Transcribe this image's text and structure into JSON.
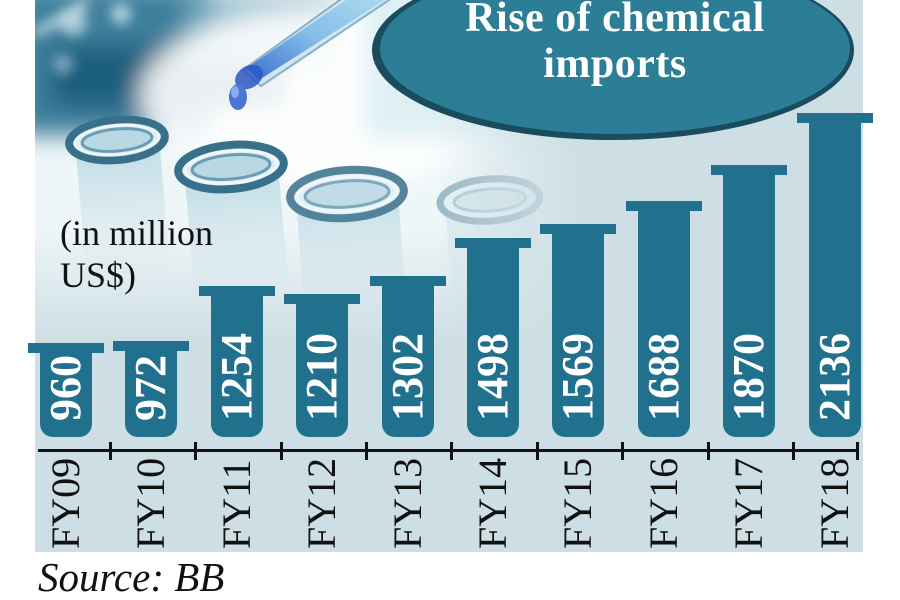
{
  "chart_data": {
    "type": "bar",
    "title": "Rise of chemical imports",
    "title_lines": [
      "Rise of chemical",
      "imports"
    ],
    "ylabel": "(in million US$)",
    "units_lines": [
      "(in million",
      "US$)"
    ],
    "xlabel": "",
    "categories": [
      "FY09",
      "FY10",
      "FY11",
      "FY12",
      "FY13",
      "FY14",
      "FY15",
      "FY16",
      "FY17",
      "FY18"
    ],
    "values": [
      960,
      972,
      1254,
      1210,
      1302,
      1498,
      1569,
      1688,
      1870,
      2136
    ],
    "source_label": "Source: BB",
    "legend_position": "none",
    "gridlines": false,
    "value_labels": "inside-bar-rotated",
    "category_labels": "rotated-90",
    "colors": {
      "bar": "#20708e",
      "background": "#cddee4",
      "ellipse_fill": "#2b7e96",
      "ellipse_border": "#1a4c5e",
      "axis": "#111111",
      "value_text": "#ffffff",
      "title_text": "#ffffff"
    }
  }
}
